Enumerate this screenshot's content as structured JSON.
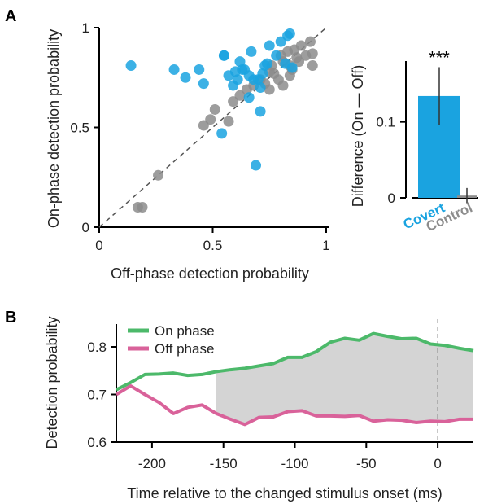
{
  "panel_a_letter": "A",
  "panel_b_letter": "B",
  "colors": {
    "covert": "#1aa3e0",
    "control": "#8c8c8c",
    "on_phase": "#4cb96a",
    "off_phase": "#d9629a",
    "shade": "#d4d4d4"
  },
  "chart_data": [
    {
      "type": "scatter",
      "title": "",
      "xlabel": "Off-phase detection probability",
      "ylabel": "On-phase detection probability",
      "xlim": [
        0,
        1
      ],
      "ylim": [
        0,
        1
      ],
      "xticks": [
        "0",
        "0.5",
        "1"
      ],
      "yticks": [
        "0",
        "0.5",
        "1"
      ],
      "diagonal": true,
      "series": [
        {
          "color": "#1aa3e0",
          "points": [
            [
              0.14,
              0.81
            ],
            [
              0.33,
              0.79
            ],
            [
              0.38,
              0.75
            ],
            [
              0.44,
              0.79
            ],
            [
              0.46,
              0.72
            ],
            [
              0.55,
              0.86
            ],
            [
              0.55,
              0.86
            ],
            [
              0.57,
              0.76
            ],
            [
              0.59,
              0.71
            ],
            [
              0.61,
              0.74
            ],
            [
              0.62,
              0.83
            ],
            [
              0.63,
              0.79
            ],
            [
              0.64,
              0.79
            ],
            [
              0.66,
              0.76
            ],
            [
              0.67,
              0.88
            ],
            [
              0.68,
              0.74
            ],
            [
              0.7,
              0.74
            ],
            [
              0.71,
              0.7
            ],
            [
              0.72,
              0.77
            ],
            [
              0.74,
              0.82
            ],
            [
              0.75,
              0.91
            ],
            [
              0.78,
              0.86
            ],
            [
              0.8,
              0.93
            ],
            [
              0.83,
              0.96
            ],
            [
              0.84,
              0.97
            ],
            [
              0.85,
              0.8
            ],
            [
              0.66,
              0.65
            ],
            [
              0.71,
              0.58
            ],
            [
              0.54,
              0.47
            ],
            [
              0.69,
              0.31
            ],
            [
              0.6,
              0.78
            ],
            [
              0.73,
              0.81
            ],
            [
              0.82,
              0.82
            ]
          ]
        },
        {
          "color": "#8c8c8c",
          "points": [
            [
              0.17,
              0.1
            ],
            [
              0.19,
              0.1
            ],
            [
              0.26,
              0.26
            ],
            [
              0.46,
              0.51
            ],
            [
              0.49,
              0.54
            ],
            [
              0.51,
              0.59
            ],
            [
              0.57,
              0.53
            ],
            [
              0.59,
              0.63
            ],
            [
              0.62,
              0.66
            ],
            [
              0.65,
              0.69
            ],
            [
              0.68,
              0.71
            ],
            [
              0.71,
              0.74
            ],
            [
              0.73,
              0.72
            ],
            [
              0.75,
              0.69
            ],
            [
              0.75,
              0.78
            ],
            [
              0.76,
              0.81
            ],
            [
              0.77,
              0.77
            ],
            [
              0.79,
              0.74
            ],
            [
              0.8,
              0.86
            ],
            [
              0.81,
              0.83
            ],
            [
              0.81,
              0.71
            ],
            [
              0.83,
              0.88
            ],
            [
              0.84,
              0.76
            ],
            [
              0.84,
              0.81
            ],
            [
              0.85,
              0.79
            ],
            [
              0.86,
              0.89
            ],
            [
              0.87,
              0.85
            ],
            [
              0.88,
              0.83
            ],
            [
              0.89,
              0.91
            ],
            [
              0.91,
              0.86
            ],
            [
              0.93,
              0.93
            ],
            [
              0.94,
              0.81
            ],
            [
              0.94,
              0.87
            ]
          ]
        }
      ]
    },
    {
      "type": "bar",
      "title": "",
      "ylabel": "Difference (On — Off)",
      "ylim": [
        -0.005,
        0.18
      ],
      "yticks": [
        "0",
        "0.1"
      ],
      "categories": [
        "Covert",
        "Control"
      ],
      "values": [
        0.134,
        0.003
      ],
      "errors": [
        0.038,
        0.01
      ],
      "bar_colors": [
        "#1aa3e0",
        "#8c8c8c"
      ],
      "significance": "***"
    },
    {
      "type": "line",
      "title": "",
      "xlabel": "Time relative to the changed stimulus onset (ms)",
      "ylabel": "Detection probability",
      "xlim": [
        -225,
        25
      ],
      "ylim": [
        0.6,
        0.88
      ],
      "xticks": [
        "-200",
        "-150",
        "-100",
        "-50",
        "0"
      ],
      "yticks": [
        "0.6",
        "0.7",
        "0.8"
      ],
      "vline_x": 0,
      "shaded_from_x": -155,
      "x": [
        -225,
        -215,
        -205,
        -195,
        -185,
        -175,
        -165,
        -155,
        -145,
        -135,
        -125,
        -115,
        -105,
        -95,
        -85,
        -75,
        -65,
        -55,
        -45,
        -35,
        -25,
        -15,
        -5,
        5,
        15,
        25
      ],
      "series": [
        {
          "name": "On phase",
          "color": "#4cb96a",
          "values": [
            0.71,
            0.725,
            0.742,
            0.743,
            0.745,
            0.74,
            0.742,
            0.748,
            0.752,
            0.755,
            0.76,
            0.765,
            0.778,
            0.778,
            0.79,
            0.81,
            0.818,
            0.814,
            0.828,
            0.822,
            0.817,
            0.818,
            0.806,
            0.803,
            0.797,
            0.792
          ]
        },
        {
          "name": "Off phase",
          "color": "#d9629a",
          "values": [
            0.7,
            0.718,
            0.7,
            0.683,
            0.66,
            0.673,
            0.678,
            0.66,
            0.648,
            0.637,
            0.652,
            0.653,
            0.664,
            0.666,
            0.655,
            0.655,
            0.654,
            0.656,
            0.644,
            0.647,
            0.646,
            0.641,
            0.644,
            0.643,
            0.648,
            0.648
          ]
        }
      ]
    }
  ]
}
